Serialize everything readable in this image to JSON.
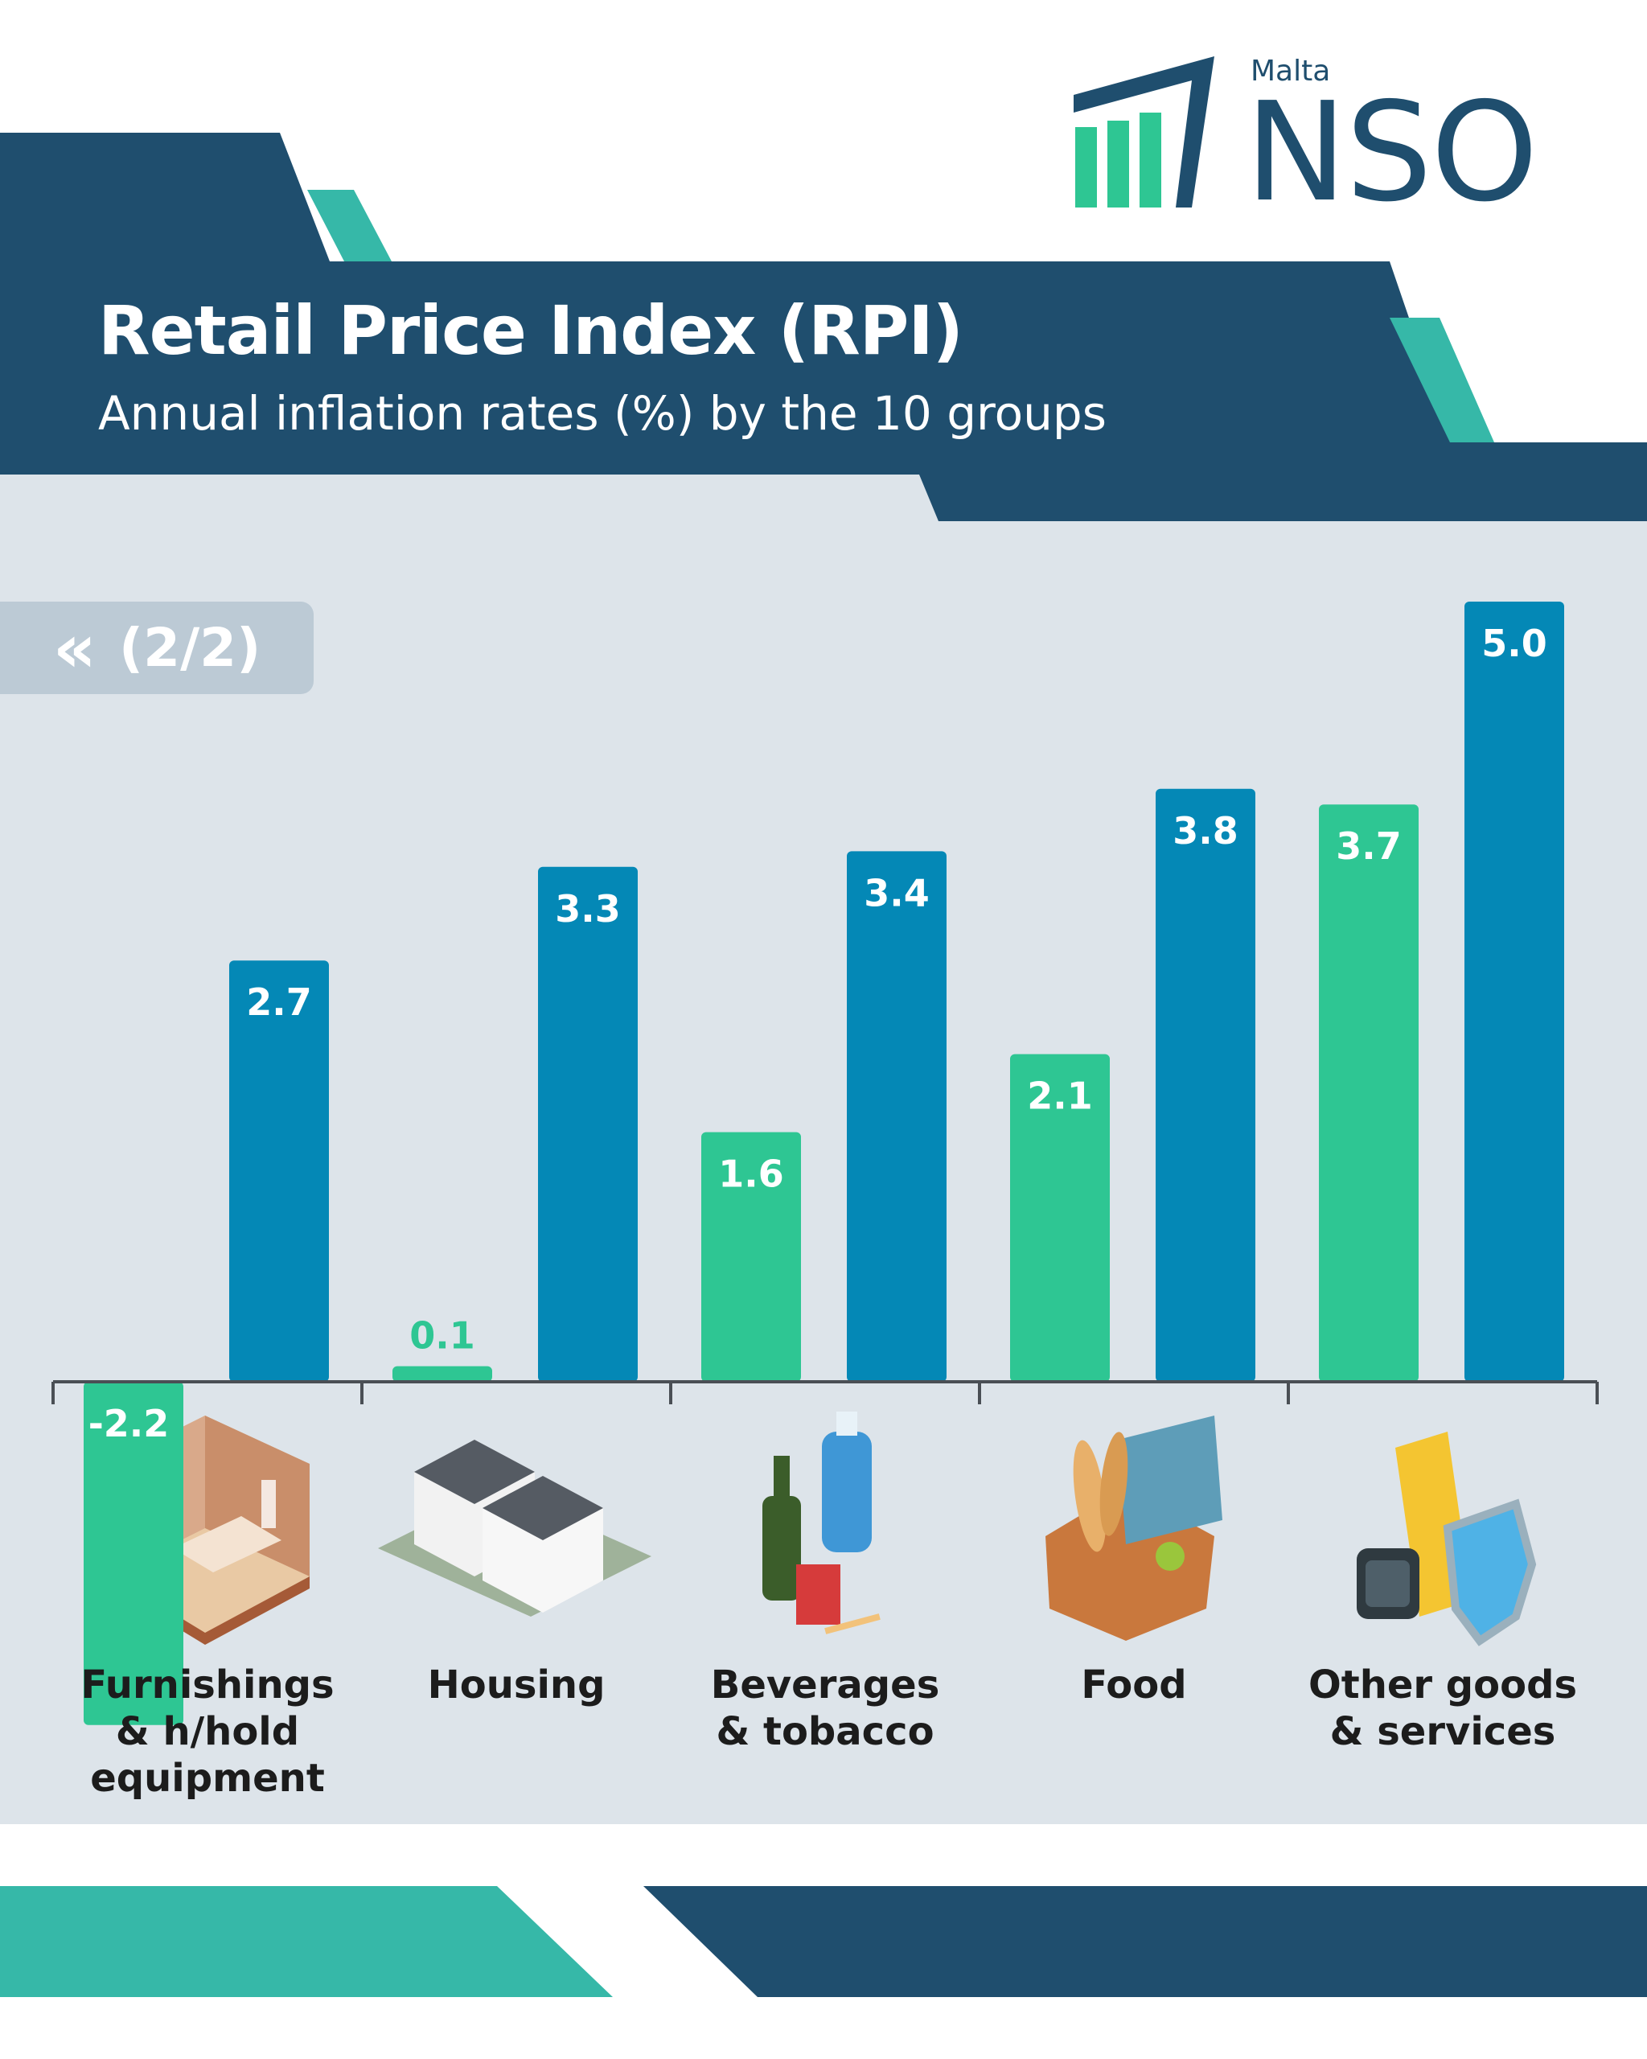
{
  "brand": {
    "country": "Malta",
    "name": "NSO"
  },
  "header": {
    "title": "Retail Price Index (RPI)",
    "subtitle": "Annual inflation rates (%) by the 10 groups"
  },
  "pager": {
    "icon": "double-chevron-left-icon",
    "label": "(2/2)"
  },
  "colors": {
    "navy": "#1f4e6e",
    "teal": "#36b8a8",
    "bar_green": "#2ec693",
    "bar_blue": "#0488b6",
    "panel": "#dde4ea"
  },
  "chart_data": {
    "type": "bar",
    "categories": [
      "Furnishings\n& h/hold\nequipment",
      "Housing",
      "Beverages\n& tobacco",
      "Food",
      "Other goods\n& services"
    ],
    "series": [
      {
        "values": [
          -2.2,
          0.1,
          1.6,
          2.1,
          3.7
        ]
      },
      {
        "values": [
          2.7,
          3.3,
          3.4,
          3.8,
          5.0
        ]
      }
    ],
    "value_labels": [
      [
        "-2.2",
        "0.1",
        "1.6",
        "2.1",
        "3.7"
      ],
      [
        "2.7",
        "3.3",
        "3.4",
        "3.8",
        "5.0"
      ]
    ],
    "category_icons": [
      "bedroom-icon",
      "houses-icon",
      "bottles-cigarettes-icon",
      "picnic-basket-icon",
      "goods-services-icon"
    ],
    "title": "",
    "xlabel": "",
    "ylabel": "",
    "ylim": [
      -2.2,
      5.0
    ],
    "grid": false,
    "legend": "none"
  }
}
